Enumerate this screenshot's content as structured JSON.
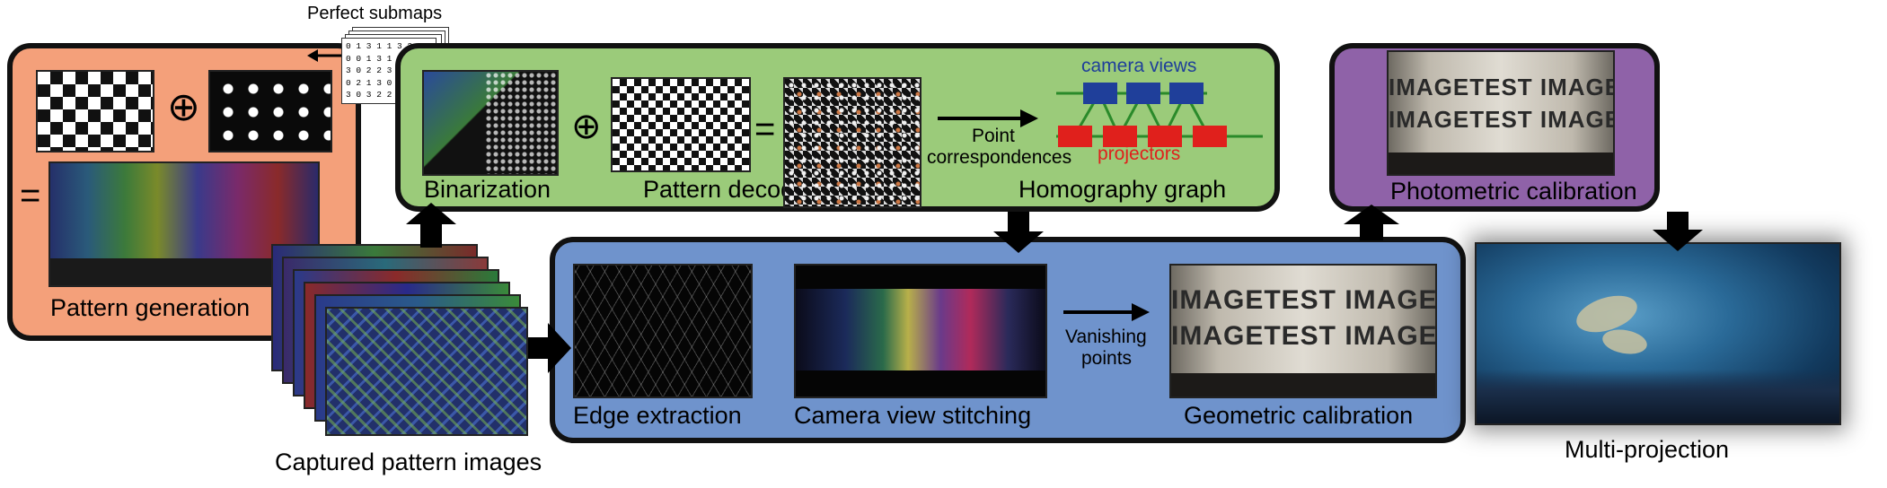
{
  "labels": {
    "perfect_submaps": "Perfect submaps",
    "pattern_generation": "Pattern generation",
    "binarization": "Binarization",
    "pattern_decoding": "Pattern decoding",
    "point_correspondences_line1": "Point",
    "point_correspondences_line2": "correspondences",
    "homography_graph": "Homography graph",
    "camera_views": "camera views",
    "projectors": "projectors",
    "photometric_calibration": "Photometric calibration",
    "captured_pattern_images": "Captured pattern images",
    "edge_extraction": "Edge extraction",
    "camera_view_stitching": "Camera view stitching",
    "vanishing_points_line1": "Vanishing",
    "vanishing_points_line2": "points",
    "geometric_calibration": "Geometric calibration",
    "multi_projection": "Multi-projection"
  },
  "symbols": {
    "oplus": "⊕",
    "equals": "="
  },
  "submap_rows": [
    "0 1 3 1 1 3 2 0",
    "0 0 1 3 1 0 3 1",
    "3 0 2 2 3 1 3 0",
    "0 2 1 3 0 3 0 1",
    "3 0 3 2 2 0 2 1"
  ],
  "test_image_rows": [
    "IMAGETEST  IMAGETEST  I",
    "IMAGETEST  IMAGETEST"
  ],
  "geo_test_rows": [
    "IMAGETEST  IMAGETEST",
    "IMAGETEST  IMAGETEST"
  ],
  "colors": {
    "orange_panel": "#f4a07a",
    "green_panel": "#9bcb7a",
    "blue_panel": "#6f93cc",
    "purple_panel": "#8f62a8",
    "camera_node": "#1f3f9a",
    "projector_node": "#e0201c",
    "graph_edge": "#2a8a2a"
  }
}
